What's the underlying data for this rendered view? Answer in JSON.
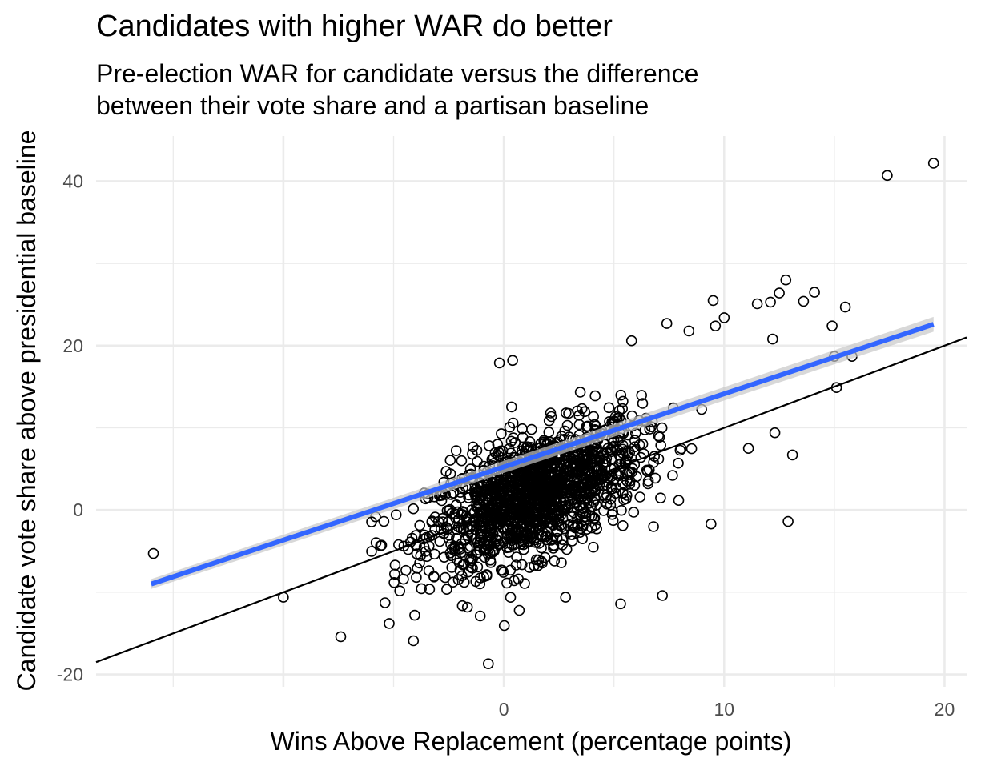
{
  "chart_data": {
    "type": "scatter",
    "title": "Candidates with higher WAR do better",
    "subtitle": [
      "Pre-election WAR for candidate versus the difference",
      "between their vote share and a partisan baseline"
    ],
    "xlabel": "Wins Above Replacement (percentage points)",
    "ylabel": "Candidate vote share above presidential baseline",
    "xlim": [
      -18.5,
      21
    ],
    "ylim": [
      -21.5,
      45.5
    ],
    "x_ticks": [
      0,
      10,
      20
    ],
    "x_tick_labels": [
      "0",
      "10",
      "20"
    ],
    "y_ticks": [
      -20,
      0,
      20,
      40
    ],
    "y_tick_labels": [
      "-20",
      "0",
      "20",
      "40"
    ],
    "grid": true,
    "point_style": "open circle",
    "cluster": {
      "approx_count": 1500,
      "x_mean": 1.4,
      "x_sd": 2.4,
      "slope": 1.0,
      "intercept": 0.4,
      "residual_sd": 3.6,
      "x_range": [
        -6,
        11
      ]
    },
    "highlight_points": [
      {
        "x": -15.9,
        "y": -5.3
      },
      {
        "x": -10.0,
        "y": -10.6
      },
      {
        "x": -7.4,
        "y": -15.4
      },
      {
        "x": -5.2,
        "y": -13.8
      },
      {
        "x": -4.1,
        "y": -15.9
      },
      {
        "x": -0.7,
        "y": -18.7
      },
      {
        "x": -0.2,
        "y": 17.9
      },
      {
        "x": 0.4,
        "y": 18.2
      },
      {
        "x": 0.7,
        "y": -12.2
      },
      {
        "x": 2.8,
        "y": -10.6
      },
      {
        "x": 5.3,
        "y": -11.4
      },
      {
        "x": 5.8,
        "y": 20.6
      },
      {
        "x": 7.2,
        "y": -10.4
      },
      {
        "x": 7.4,
        "y": 22.7
      },
      {
        "x": 8.4,
        "y": 21.8
      },
      {
        "x": 9.5,
        "y": 25.5
      },
      {
        "x": 9.6,
        "y": 22.4
      },
      {
        "x": 10.0,
        "y": 23.4
      },
      {
        "x": 9.4,
        "y": -1.7
      },
      {
        "x": 11.1,
        "y": 7.5
      },
      {
        "x": 11.5,
        "y": 25.1
      },
      {
        "x": 12.1,
        "y": 25.3
      },
      {
        "x": 12.2,
        "y": 20.8
      },
      {
        "x": 12.3,
        "y": 9.4
      },
      {
        "x": 12.5,
        "y": 26.4
      },
      {
        "x": 12.8,
        "y": 28.0
      },
      {
        "x": 12.9,
        "y": -1.4
      },
      {
        "x": 13.1,
        "y": 6.7
      },
      {
        "x": 13.6,
        "y": 25.4
      },
      {
        "x": 14.1,
        "y": 26.5
      },
      {
        "x": 14.9,
        "y": 22.4
      },
      {
        "x": 15.0,
        "y": 18.7
      },
      {
        "x": 15.1,
        "y": 14.9
      },
      {
        "x": 15.5,
        "y": 24.7
      },
      {
        "x": 15.8,
        "y": 18.7
      },
      {
        "x": 17.4,
        "y": 40.7
      },
      {
        "x": 19.5,
        "y": 42.2
      }
    ],
    "reference_line": {
      "label": "identity",
      "slope": 1,
      "intercept": 0,
      "color": "#000000"
    },
    "fit_line": {
      "label": "linear fit",
      "x": [
        -16,
        19.5
      ],
      "y": [
        -9.0,
        22.6
      ],
      "se_band": [
        0.6,
        0.9
      ],
      "color": "#3366ff",
      "band_color": "#c8c8c8"
    }
  }
}
